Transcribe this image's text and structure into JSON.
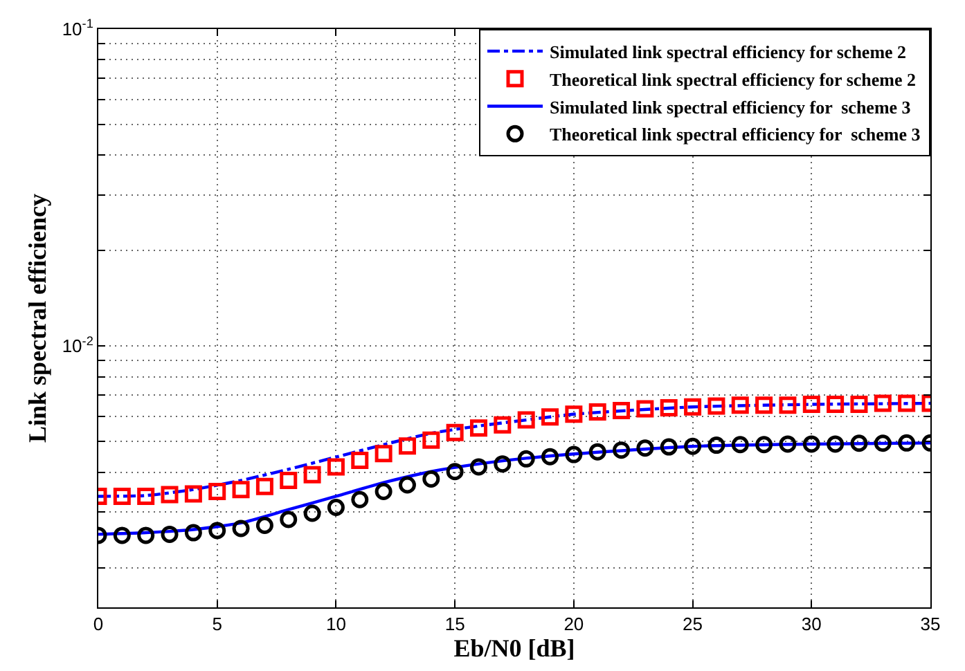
{
  "chart_data": {
    "type": "line",
    "xlabel": "Eb/N0 [dB]",
    "ylabel": "Link spectral efficiency",
    "log": "y",
    "grid": true,
    "legend": "top right",
    "xlim": [
      0,
      35
    ],
    "xticks": [
      0,
      5,
      10,
      15,
      20,
      25,
      30,
      35
    ],
    "ylim": [
      0.0015,
      0.1
    ],
    "yticks": [
      {
        "value": 0.002,
        "label": null
      },
      {
        "value": 0.003,
        "label": null
      },
      {
        "value": 0.004,
        "label": null
      },
      {
        "value": 0.005,
        "label": null
      },
      {
        "value": 0.006,
        "label": null
      },
      {
        "value": 0.007,
        "label": null
      },
      {
        "value": 0.008,
        "label": null
      },
      {
        "value": 0.009,
        "label": null
      },
      {
        "value": 0.01,
        "label": "10$^{-2}$"
      },
      {
        "value": 0.02,
        "label": null
      },
      {
        "value": 0.03,
        "label": null
      },
      {
        "value": 0.04,
        "label": null
      },
      {
        "value": 0.05,
        "label": null
      },
      {
        "value": 0.06,
        "label": null
      },
      {
        "value": 0.07,
        "label": null
      },
      {
        "value": 0.08,
        "label": null
      },
      {
        "value": 0.09,
        "label": null
      },
      {
        "value": 0.1,
        "label": "10$^{-1}$"
      }
    ],
    "series": [
      {
        "name": "Simulated link spectral efficiency for scheme 2",
        "color": "#0000ff",
        "line_style": "dashdot",
        "marker": "none",
        "x": [
          0,
          2,
          4,
          6,
          8,
          10,
          12,
          14,
          16,
          18,
          20,
          25,
          30,
          35
        ],
        "values": [
          0.00336,
          0.00338,
          0.00353,
          0.00377,
          0.00409,
          0.00447,
          0.00489,
          0.00531,
          0.0056,
          0.00585,
          0.0061,
          0.00643,
          0.00655,
          0.0066
        ]
      },
      {
        "name": "Theoretical link spectral efficiency for scheme 2",
        "type": "scatter",
        "color": "#ff0000",
        "marker": "square",
        "x": [
          0,
          1,
          2,
          3,
          4,
          5,
          6,
          7,
          8,
          9,
          10,
          11,
          12,
          13,
          14,
          15,
          16,
          17,
          18,
          19,
          20,
          21,
          22,
          23,
          24,
          25,
          26,
          27,
          28,
          29,
          30,
          31,
          32,
          33,
          34,
          35
        ],
        "values": [
          0.00336,
          0.00336,
          0.00336,
          0.0034,
          0.00342,
          0.00348,
          0.00353,
          0.00361,
          0.00377,
          0.00393,
          0.00416,
          0.00436,
          0.00458,
          0.00484,
          0.00505,
          0.00534,
          0.00552,
          0.00564,
          0.00585,
          0.00598,
          0.0061,
          0.0062,
          0.00626,
          0.00634,
          0.00639,
          0.00643,
          0.00647,
          0.00651,
          0.00651,
          0.00651,
          0.00655,
          0.00655,
          0.00655,
          0.0066,
          0.0066,
          0.0066
        ]
      },
      {
        "name": "Simulated link spectral efficiency for  scheme 3",
        "color": "#0000ff",
        "line_style": "solid",
        "marker": "none",
        "x": [
          0,
          2,
          4,
          6,
          8,
          10,
          12,
          14,
          16,
          18,
          20,
          25,
          30,
          35
        ],
        "values": [
          0.00255,
          0.00258,
          0.00264,
          0.00277,
          0.00305,
          0.00336,
          0.00371,
          0.00402,
          0.00425,
          0.00443,
          0.00457,
          0.00483,
          0.00491,
          0.00495
        ]
      },
      {
        "name": "Theoretical link spectral efficiency for  scheme 3",
        "type": "scatter",
        "color": "#000000",
        "marker": "circle",
        "x": [
          0,
          1,
          2,
          3,
          4,
          5,
          6,
          7,
          8,
          9,
          10,
          11,
          12,
          13,
          14,
          15,
          16,
          17,
          18,
          19,
          20,
          21,
          22,
          23,
          24,
          25,
          26,
          27,
          28,
          29,
          30,
          31,
          32,
          33,
          34,
          35
        ],
        "values": [
          0.00253,
          0.00253,
          0.00253,
          0.00255,
          0.00258,
          0.00262,
          0.00266,
          0.00272,
          0.00284,
          0.00297,
          0.0031,
          0.00328,
          0.00348,
          0.00365,
          0.00381,
          0.00402,
          0.00416,
          0.00425,
          0.00441,
          0.00448,
          0.00455,
          0.00464,
          0.0047,
          0.00477,
          0.00481,
          0.00483,
          0.00487,
          0.00489,
          0.00489,
          0.00491,
          0.00491,
          0.00491,
          0.00494,
          0.00494,
          0.00495,
          0.00495
        ]
      }
    ]
  }
}
